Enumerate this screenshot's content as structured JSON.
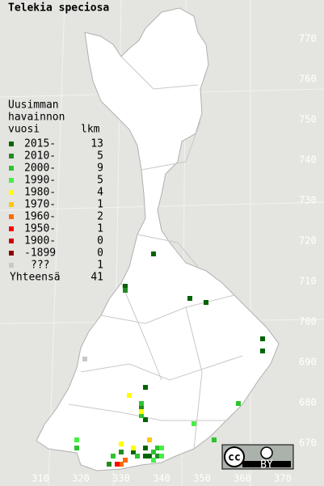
{
  "title": "Telekia speciosa",
  "legend": {
    "heading": [
      "Uusimman",
      "havainnon"
    ],
    "col_period": "vuosi",
    "col_count": "lkm",
    "entries": [
      {
        "label": "2015-",
        "count": 13,
        "color": "#006400",
        "points": [
          [
            338,
            717
          ],
          [
            331,
            709
          ],
          [
            347,
            706
          ],
          [
            351,
            705
          ],
          [
            365,
            696
          ],
          [
            365,
            693
          ],
          [
            336,
            684
          ],
          [
            336,
            676
          ],
          [
            336,
            669
          ],
          [
            333,
            668
          ],
          [
            336,
            667
          ],
          [
            337,
            667
          ],
          [
            338,
            668
          ]
        ]
      },
      {
        "label": "2010-",
        "count": 5,
        "color": "#228b22",
        "points": [
          [
            331,
            708
          ],
          [
            335,
            679
          ],
          [
            339,
            667
          ],
          [
            327,
            665
          ],
          [
            330,
            668
          ]
        ]
      },
      {
        "label": "2000-",
        "count": 9,
        "color": "#2ec42e",
        "points": [
          [
            335,
            680
          ],
          [
            335,
            677
          ],
          [
            359,
            680
          ],
          [
            353,
            671
          ],
          [
            338,
            668
          ],
          [
            339,
            669
          ],
          [
            319,
            669
          ],
          [
            328,
            667
          ],
          [
            334,
            667
          ]
        ]
      },
      {
        "label": "1990-",
        "count": 5,
        "color": "#44f044",
        "points": [
          [
            348,
            675
          ],
          [
            319,
            671
          ],
          [
            340,
            669
          ],
          [
            338,
            666
          ],
          [
            340,
            667
          ]
        ]
      },
      {
        "label": "1980-",
        "count": 4,
        "color": "#ffff00",
        "points": [
          [
            332,
            682
          ],
          [
            335,
            678
          ],
          [
            330,
            670
          ],
          [
            333,
            669
          ]
        ]
      },
      {
        "label": "1970-",
        "count": 1,
        "color": "#ffc800",
        "points": [
          [
            337,
            671
          ]
        ]
      },
      {
        "label": "1960-",
        "count": 2,
        "color": "#ff6a00",
        "points": [
          [
            331,
            666
          ],
          [
            330,
            665
          ]
        ]
      },
      {
        "label": "1950-",
        "count": 1,
        "color": "#ff0000",
        "points": [
          [
            329,
            665
          ]
        ]
      },
      {
        "label": "1900-",
        "count": 0,
        "color": "#cc0000",
        "points": []
      },
      {
        "label": "-1899",
        "count": 0,
        "color": "#880000",
        "points": []
      },
      {
        "label": "???",
        "count": 1,
        "color": "#c8c8c8",
        "points": [
          [
            321,
            691
          ]
        ]
      }
    ],
    "total_label": "Yhteensä",
    "total": 41
  },
  "y_axis_labels": [
    770,
    760,
    750,
    740,
    730,
    720,
    710,
    700,
    690,
    680,
    670
  ],
  "x_axis_labels": [
    310,
    320,
    330,
    340,
    350,
    360,
    370
  ],
  "license_badge": {
    "text": "BY"
  }
}
